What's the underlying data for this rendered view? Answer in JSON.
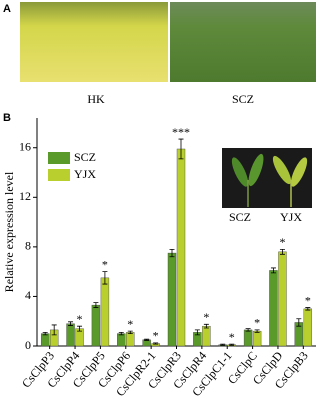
{
  "chart_data": {
    "type": "bar",
    "panel_labels": [
      "A",
      "B"
    ],
    "photo_labels": [
      "HK",
      "SCZ"
    ],
    "inset_labels": [
      "SCZ",
      "YJX"
    ],
    "ylabel": "Relative expression level",
    "categories": [
      "CsClpP3",
      "CsClpP4",
      "CsClpP5",
      "CsClpP6",
      "CsClpR2-1",
      "CsClpR3",
      "CsClpR4",
      "CsClpC1-1",
      "CsClpC",
      "CsClpD",
      "CsClpB3"
    ],
    "series": [
      {
        "name": "SCZ",
        "color": "#5a9a2a",
        "values": [
          1.0,
          1.8,
          3.3,
          1.0,
          0.5,
          7.5,
          1.1,
          0.1,
          1.3,
          6.1,
          1.9
        ],
        "errors": [
          0.1,
          0.15,
          0.2,
          0.1,
          0.05,
          0.3,
          0.2,
          0.05,
          0.1,
          0.2,
          0.3
        ]
      },
      {
        "name": "YJX",
        "color": "#b8cf2e",
        "values": [
          1.3,
          1.4,
          5.5,
          1.1,
          0.2,
          15.9,
          1.6,
          0.1,
          1.2,
          7.6,
          3.0
        ],
        "errors": [
          0.4,
          0.2,
          0.5,
          0.1,
          0.05,
          0.8,
          0.15,
          0.05,
          0.1,
          0.2,
          0.1
        ],
        "significance": [
          null,
          "*",
          "*",
          "*",
          "*",
          "***",
          "*",
          "*",
          "*",
          "*",
          "*"
        ]
      }
    ],
    "ylim": [
      0,
      18.4
    ],
    "yticks": [
      0,
      4,
      8,
      12,
      16
    ]
  }
}
